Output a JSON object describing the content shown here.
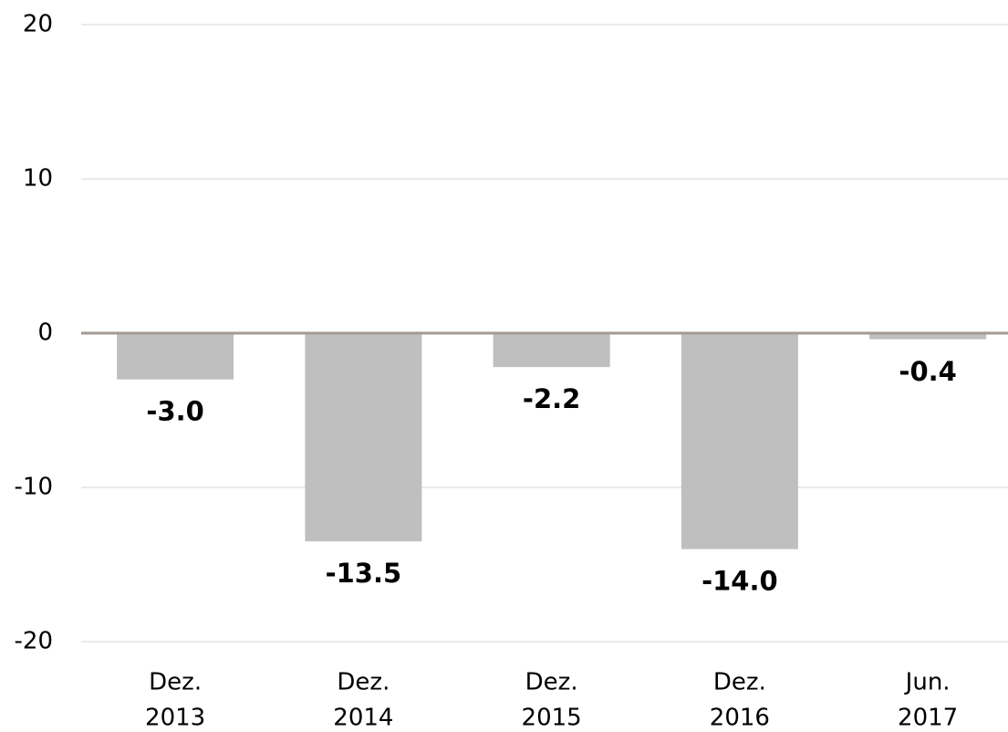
{
  "chart_data": {
    "type": "bar",
    "categories": [
      [
        "Dez.",
        "2013"
      ],
      [
        "Dez.",
        "2014"
      ],
      [
        "Dez.",
        "2015"
      ],
      [
        "Dez.",
        "2016"
      ],
      [
        "Jun.",
        "2017"
      ]
    ],
    "values": [
      -3.0,
      -13.5,
      -2.2,
      -14.0,
      -0.4
    ],
    "value_labels": [
      "-3.0",
      "-13.5",
      "-2.2",
      "-14.0",
      "-0.4"
    ],
    "color": "#bfbfbf",
    "ylim": [
      -20,
      20
    ],
    "yticks": [
      -20,
      -10,
      0,
      10,
      20
    ],
    "grid": true
  }
}
